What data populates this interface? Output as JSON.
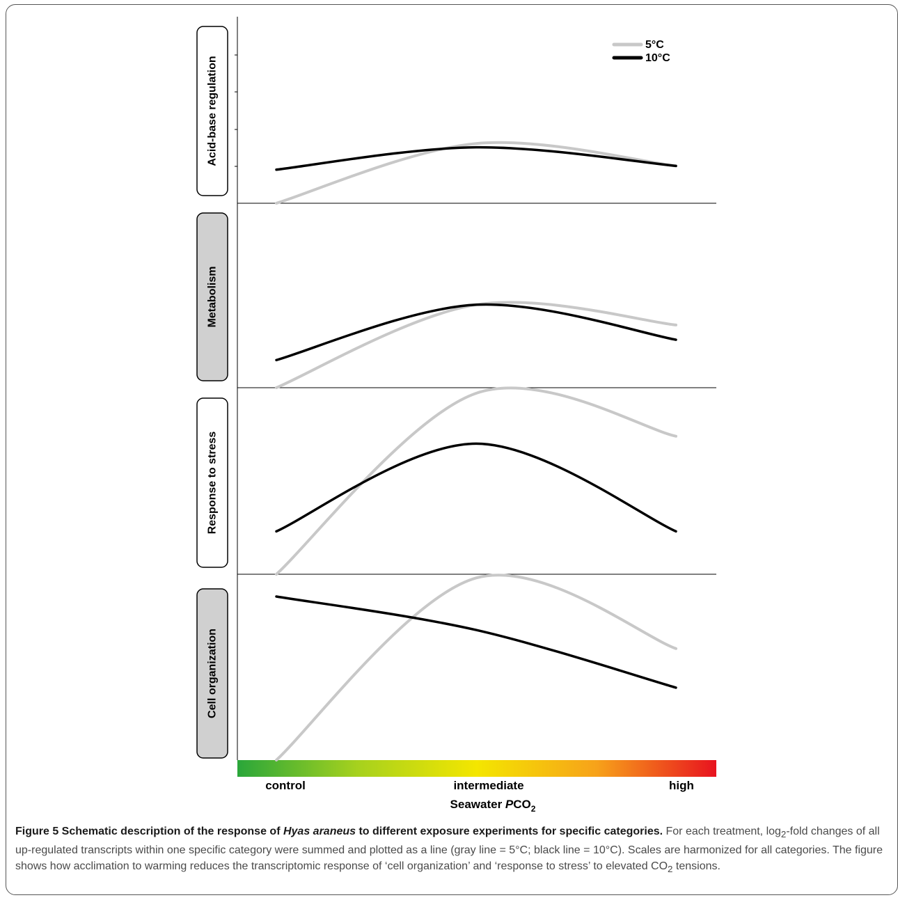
{
  "chart_data": {
    "type": "line",
    "xlabel_main": "Seawater ",
    "xlabel_italic": "P",
    "xlabel_co": "CO",
    "xlabel_sub": "2",
    "x_ticks": [
      "control",
      "intermediate",
      "high"
    ],
    "legend": [
      {
        "name": "5°C",
        "color": "#c8c8c8"
      },
      {
        "name": "10°C",
        "color": "#000000"
      }
    ],
    "colorbar": {
      "stops": [
        "#2aa63a",
        "#a6d11e",
        "#f4e600",
        "#f7a21a",
        "#e8131f"
      ]
    },
    "panels": [
      {
        "label": "Acid-base regulation",
        "label_bg": "#ffffff",
        "x": [
          0,
          0.5,
          1
        ],
        "series": [
          {
            "name": "5°C",
            "values": [
              0.0,
              0.32,
              0.2
            ]
          },
          {
            "name": "10°C",
            "values": [
              0.18,
              0.3,
              0.2
            ]
          }
        ]
      },
      {
        "label": "Metabolism",
        "label_bg": "#d0d0d0",
        "x": [
          0,
          0.5,
          1
        ],
        "series": [
          {
            "name": "5°C",
            "values": [
              0.0,
              0.45,
              0.34
            ]
          },
          {
            "name": "10°C",
            "values": [
              0.15,
              0.45,
              0.26
            ]
          }
        ]
      },
      {
        "label": "Response to stress",
        "label_bg": "#ffffff",
        "x": [
          0,
          0.5,
          1
        ],
        "series": [
          {
            "name": "5°C",
            "values": [
              0.0,
              0.97,
              0.74
            ]
          },
          {
            "name": "10°C",
            "values": [
              0.23,
              0.7,
              0.23
            ]
          }
        ]
      },
      {
        "label": "Cell organization",
        "label_bg": "#d0d0d0",
        "x": [
          0,
          0.5,
          1
        ],
        "series": [
          {
            "name": "5°C",
            "values": [
              0.0,
              0.98,
              0.6
            ]
          },
          {
            "name": "10°C",
            "values": [
              0.88,
              0.7,
              0.39
            ]
          }
        ]
      }
    ]
  },
  "caption": {
    "title_a": "Figure 5 Schematic description of the response of ",
    "title_species": "Hyas araneus",
    "title_b": " to different exposure experiments for specific categories.",
    "body_a": " For each treatment, log",
    "body_log_sub": "2",
    "body_b": "-fold changes of all up-regulated transcripts within one specific category were summed and plotted as a line (gray line = 5°C; black line = 10°C). Scales are harmonized for all categories. The figure shows how acclimation to warming reduces the transcriptomic response of ‘cell organization’ and ‘response to stress’ to elevated CO",
    "body_co_sub": "2",
    "body_c": " tensions."
  }
}
